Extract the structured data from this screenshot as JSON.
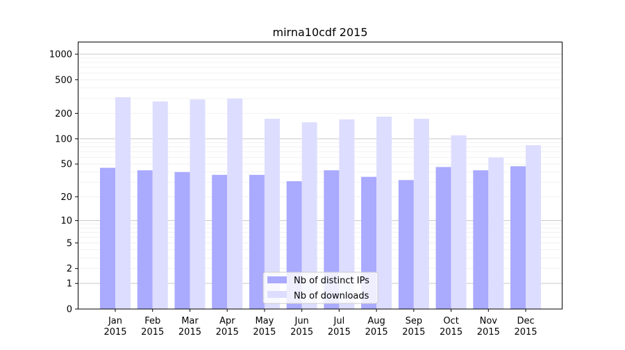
{
  "chart_data": {
    "type": "bar",
    "title": "mirna10cdf 2015",
    "xlabel": "",
    "ylabel": "",
    "yscale": "log(1+x)",
    "ylim": [
      0,
      1300
    ],
    "yticks": [
      0,
      1,
      2,
      5,
      10,
      20,
      50,
      100,
      200,
      500,
      1000
    ],
    "ytick_labels": [
      "0",
      "1",
      "2",
      "5",
      "10",
      "20",
      "50",
      "100",
      "200",
      "500",
      "1000"
    ],
    "grid": true,
    "legend_position": "bottom-center",
    "categories": [
      "Jan\n2015",
      "Feb\n2015",
      "Mar\n2015",
      "Apr\n2015",
      "May\n2015",
      "Jun\n2015",
      "Jul\n2015",
      "Aug\n2015",
      "Sep\n2015",
      "Oct\n2015",
      "Nov\n2015",
      "Dec\n2015"
    ],
    "category_lines": [
      [
        "Jan",
        "2015"
      ],
      [
        "Feb",
        "2015"
      ],
      [
        "Mar",
        "2015"
      ],
      [
        "Apr",
        "2015"
      ],
      [
        "May",
        "2015"
      ],
      [
        "Jun",
        "2015"
      ],
      [
        "Jul",
        "2015"
      ],
      [
        "Aug",
        "2015"
      ],
      [
        "Sep",
        "2015"
      ],
      [
        "Oct",
        "2015"
      ],
      [
        "Nov",
        "2015"
      ],
      [
        "Dec",
        "2015"
      ]
    ],
    "series": [
      {
        "name": "Nb of distinct IPs",
        "color": "#aaaaff",
        "values": [
          45,
          42,
          40,
          37,
          37,
          31,
          42,
          35,
          32,
          46,
          42,
          47
        ]
      },
      {
        "name": "Nb of downloads",
        "color": "#ddddff",
        "values": [
          311,
          277,
          293,
          300,
          173,
          157,
          170,
          183,
          173,
          110,
          60,
          84
        ]
      }
    ]
  }
}
